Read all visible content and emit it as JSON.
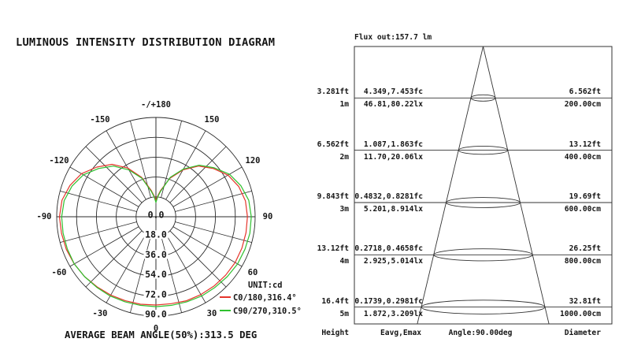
{
  "title": "LUMINOUS INTENSITY DISTRIBUTION DIAGRAM",
  "polar": {
    "unit_label": "UNIT:cd",
    "footer": "AVERAGE BEAM ANGLE(50%):313.5 DEG"
  },
  "chart_data": [
    {
      "type": "line",
      "subtype": "polar-intensity",
      "title": "LUMINOUS INTENSITY DISTRIBUTION DIAGRAM",
      "unit": "cd",
      "r_max": 90,
      "r_ticks": [
        0,
        18,
        36,
        54,
        72,
        90
      ],
      "r_tick_labels": [
        "0.0",
        "18.0",
        "36.0",
        "54.0",
        "72.0",
        "90.0"
      ],
      "angle_ticks": [
        {
          "deg": 180,
          "label": "-/+180"
        },
        {
          "deg": -150,
          "label": "-150"
        },
        {
          "deg": 150,
          "label": "150"
        },
        {
          "deg": -120,
          "label": "-120"
        },
        {
          "deg": 120,
          "label": "120"
        },
        {
          "deg": -90,
          "label": "-90"
        },
        {
          "deg": 90,
          "label": "90"
        },
        {
          "deg": -60,
          "label": "-60"
        },
        {
          "deg": 60,
          "label": "60"
        },
        {
          "deg": -30,
          "label": "-30"
        },
        {
          "deg": 30,
          "label": "30"
        },
        {
          "deg": 0,
          "label": "0"
        }
      ],
      "average_beam_angle_50pct_deg": 313.5,
      "series": [
        {
          "name": "C0/180,316.4°",
          "beam_angle_deg": 316.4,
          "color": "#e5352b",
          "points": [
            [
              -180,
              15
            ],
            [
              -175,
              19
            ],
            [
              -170,
              24
            ],
            [
              -160,
              38
            ],
            [
              -150,
              51
            ],
            [
              -140,
              62
            ],
            [
              -130,
              70
            ],
            [
              -120,
              78
            ],
            [
              -110,
              83
            ],
            [
              -100,
              86.5
            ],
            [
              -90,
              87.5
            ],
            [
              -80,
              87
            ],
            [
              -70,
              86.5
            ],
            [
              -60,
              85.5
            ],
            [
              -50,
              84.5
            ],
            [
              -40,
              83
            ],
            [
              -30,
              82
            ],
            [
              -20,
              81
            ],
            [
              -10,
              80.5
            ],
            [
              0,
              80
            ],
            [
              10,
              80
            ],
            [
              20,
              81
            ],
            [
              30,
              81.5
            ],
            [
              40,
              82
            ],
            [
              50,
              82.5
            ],
            [
              60,
              83
            ],
            [
              70,
              83
            ],
            [
              80,
              83
            ],
            [
              90,
              83
            ],
            [
              100,
              82.5
            ],
            [
              110,
              80
            ],
            [
              120,
              75.5
            ],
            [
              130,
              68
            ],
            [
              140,
              60
            ],
            [
              150,
              49
            ],
            [
              160,
              37
            ],
            [
              170,
              24
            ],
            [
              175,
              19
            ],
            [
              180,
              15
            ]
          ]
        },
        {
          "name": "C90/270,310.5°",
          "beam_angle_deg": 310.5,
          "color": "#2fc12f",
          "points": [
            [
              -180,
              13
            ],
            [
              -175,
              18
            ],
            [
              -170,
              23
            ],
            [
              -160,
              37
            ],
            [
              -150,
              49
            ],
            [
              -140,
              60
            ],
            [
              -130,
              68
            ],
            [
              -120,
              76
            ],
            [
              -110,
              81
            ],
            [
              -100,
              84.5
            ],
            [
              -90,
              85.5
            ],
            [
              -80,
              85.5
            ],
            [
              -70,
              85.5
            ],
            [
              -60,
              85.5
            ],
            [
              -50,
              84.5
            ],
            [
              -40,
              83.5
            ],
            [
              -30,
              83
            ],
            [
              -20,
              82
            ],
            [
              -10,
              81.5
            ],
            [
              0,
              81.5
            ],
            [
              10,
              81.5
            ],
            [
              20,
              82
            ],
            [
              30,
              83
            ],
            [
              40,
              83.5
            ],
            [
              50,
              84.5
            ],
            [
              60,
              85.5
            ],
            [
              70,
              86
            ],
            [
              80,
              86.5
            ],
            [
              90,
              86.5
            ],
            [
              100,
              85.5
            ],
            [
              110,
              82
            ],
            [
              120,
              77
            ],
            [
              130,
              69
            ],
            [
              140,
              61
            ],
            [
              150,
              50
            ],
            [
              160,
              38
            ],
            [
              170,
              23
            ],
            [
              175,
              18
            ],
            [
              180,
              13
            ]
          ]
        }
      ]
    },
    {
      "type": "table",
      "subtype": "cone-illuminance-diagram",
      "flux_label": "Flux out:157.7 lm",
      "flux_out_lm": 157.7,
      "beam_angle_deg": 90.0,
      "columns": {
        "height": "Height",
        "eavg": "Eavg,Emax",
        "angle": "Angle:90.00deg",
        "diameter": "Diameter"
      },
      "rows": [
        {
          "height_ft": "3.281ft",
          "height_m": "1m",
          "eavg_emax_fc": "4.349,7.453fc",
          "eavg_emax_lx": "46.81,80.22lx",
          "diameter_ft": "6.562ft",
          "diameter_cm": "200.00cm"
        },
        {
          "height_ft": "6.562ft",
          "height_m": "2m",
          "eavg_emax_fc": "1.087,1.863fc",
          "eavg_emax_lx": "11.70,20.06lx",
          "diameter_ft": "13.12ft",
          "diameter_cm": "400.00cm"
        },
        {
          "height_ft": "9.843ft",
          "height_m": "3m",
          "eavg_emax_fc": "0.4832,0.8281fc",
          "eavg_emax_lx": "5.201,8.914lx",
          "diameter_ft": "19.69ft",
          "diameter_cm": "600.00cm"
        },
        {
          "height_ft": "13.12ft",
          "height_m": "4m",
          "eavg_emax_fc": "0.2718,0.4658fc",
          "eavg_emax_lx": "2.925,5.014lx",
          "diameter_ft": "26.25ft",
          "diameter_cm": "800.00cm"
        },
        {
          "height_ft": "16.4ft",
          "height_m": "5m",
          "eavg_emax_fc": "0.1739,0.2981fc",
          "eavg_emax_lx": "1.872,3.209lx",
          "diameter_ft": "32.81ft",
          "diameter_cm": "1000.00cm"
        }
      ]
    }
  ]
}
